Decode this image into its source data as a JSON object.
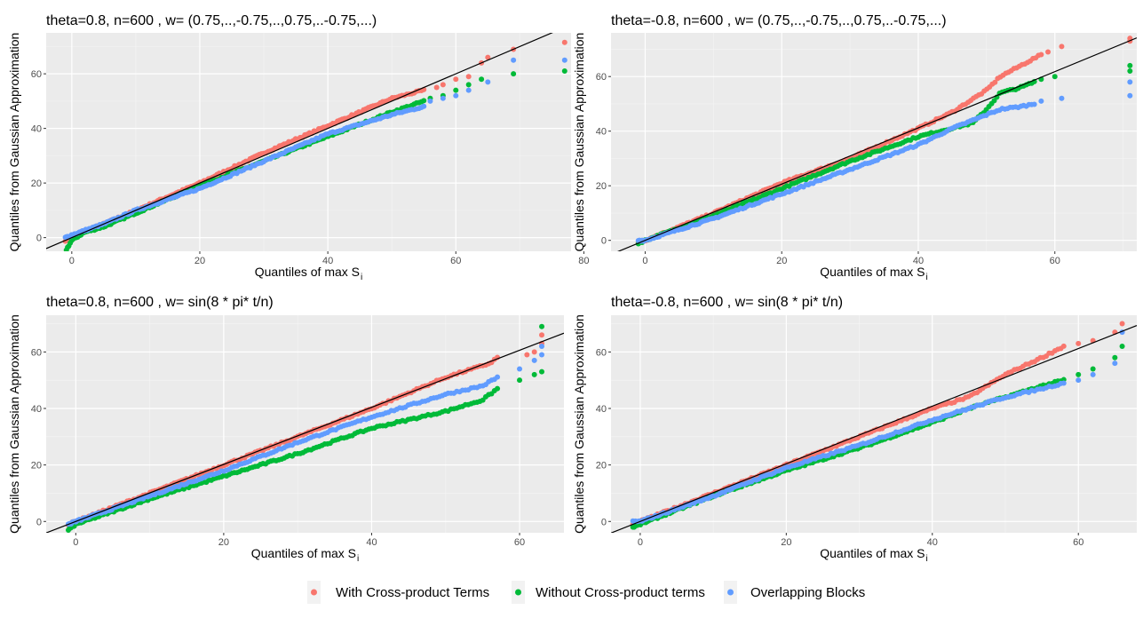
{
  "chart_data": [
    {
      "type": "scatter",
      "title": "theta=0.8, n=600 , w= (0.75,..,-0.75,..,0.75,..-0.75,...)",
      "xlabel_main": "Quantiles of max S",
      "xlabel_sub": "i",
      "ylabel": "Quantiles from Gaussian Approximation",
      "xlim": [
        -4,
        78
      ],
      "ylim": [
        -5,
        75
      ],
      "xticks": [
        0,
        20,
        40,
        60,
        80
      ],
      "yticks": [
        0,
        20,
        40,
        60
      ],
      "reference_line": {
        "intercept": 0,
        "slope": 1
      },
      "series": [
        {
          "key": "s1",
          "color": "#F8766D",
          "curve": [
            [
              -1,
              -1
            ],
            [
              0,
              0.5
            ],
            [
              5,
              5
            ],
            [
              10,
              10
            ],
            [
              20,
              20
            ],
            [
              30,
              31
            ],
            [
              40,
              41
            ],
            [
              50,
              51
            ],
            [
              55,
              54
            ]
          ],
          "tail": [
            [
              57,
              55
            ],
            [
              58,
              56
            ],
            [
              60,
              58
            ],
            [
              62,
              59
            ],
            [
              64,
              64
            ],
            [
              65,
              66
            ],
            [
              69,
              69
            ],
            [
              77,
              71.5
            ]
          ]
        },
        {
          "key": "s2",
          "color": "#00BA38",
          "curve": [
            [
              -1,
              -7
            ],
            [
              -1,
              -5
            ],
            [
              -0.5,
              -3
            ],
            [
              0,
              -1
            ],
            [
              2,
              2
            ],
            [
              5,
              4
            ],
            [
              10,
              9
            ],
            [
              20,
              19
            ],
            [
              30,
              28
            ],
            [
              40,
              37
            ],
            [
              50,
              46
            ],
            [
              55,
              50
            ]
          ],
          "tail": [
            [
              56,
              51
            ],
            [
              58,
              52
            ],
            [
              60,
              54
            ],
            [
              62,
              56
            ],
            [
              64,
              58
            ],
            [
              69,
              60
            ],
            [
              77,
              61
            ]
          ]
        },
        {
          "key": "s3",
          "color": "#619CFF",
          "curve": [
            [
              -1,
              0
            ],
            [
              0,
              1
            ],
            [
              5,
              5
            ],
            [
              10,
              10
            ],
            [
              20,
              18
            ],
            [
              30,
              28
            ],
            [
              40,
              38
            ],
            [
              50,
              45
            ],
            [
              55,
              48
            ]
          ],
          "tail": [
            [
              56,
              50
            ],
            [
              58,
              51
            ],
            [
              60,
              52
            ],
            [
              62,
              54
            ],
            [
              65,
              57
            ],
            [
              69,
              65
            ],
            [
              77,
              65
            ]
          ]
        }
      ]
    },
    {
      "type": "scatter",
      "title": "theta=-0.8, n=600 , w= (0.75,..,-0.75,..,0.75,..-0.75,...)",
      "xlabel_main": "Quantiles of max S",
      "xlabel_sub": "i",
      "ylabel": "Quantiles from Gaussian Approximation",
      "xlim": [
        -5,
        72
      ],
      "ylim": [
        -4,
        76
      ],
      "xticks": [
        0,
        20,
        40,
        60
      ],
      "yticks": [
        0,
        20,
        40,
        60
      ],
      "reference_line": {
        "intercept": 0,
        "slope": 1.03
      },
      "series": [
        {
          "key": "s1",
          "color": "#F8766D",
          "curve": [
            [
              -1,
              -1
            ],
            [
              0,
              0
            ],
            [
              10,
              10
            ],
            [
              20,
              21
            ],
            [
              30,
              30
            ],
            [
              40,
              41
            ],
            [
              45,
              47
            ],
            [
              50,
              55
            ],
            [
              52,
              60
            ],
            [
              55,
              64
            ],
            [
              58,
              68
            ]
          ],
          "tail": [
            [
              59,
              69
            ],
            [
              61,
              71
            ],
            [
              71,
              73
            ],
            [
              71,
              74
            ]
          ]
        },
        {
          "key": "s2",
          "color": "#00BA38",
          "curve": [
            [
              -1,
              -1
            ],
            [
              0,
              0
            ],
            [
              10,
              9
            ],
            [
              20,
              19
            ],
            [
              30,
              29
            ],
            [
              40,
              38
            ],
            [
              48,
              43
            ],
            [
              50,
              48
            ],
            [
              52,
              54
            ],
            [
              55,
              56
            ],
            [
              57,
              58
            ]
          ],
          "tail": [
            [
              58,
              59
            ],
            [
              60,
              60
            ],
            [
              71,
              62
            ],
            [
              71,
              64
            ]
          ]
        },
        {
          "key": "s3",
          "color": "#619CFF",
          "curve": [
            [
              -1,
              0
            ],
            [
              0,
              0
            ],
            [
              10,
              8
            ],
            [
              20,
              17
            ],
            [
              30,
              26
            ],
            [
              40,
              35
            ],
            [
              45,
              41
            ],
            [
              50,
              46
            ],
            [
              52,
              48
            ],
            [
              55,
              49
            ],
            [
              57,
              50
            ]
          ],
          "tail": [
            [
              58,
              51
            ],
            [
              61,
              52
            ],
            [
              71,
              53
            ],
            [
              71,
              58
            ]
          ]
        }
      ]
    },
    {
      "type": "scatter",
      "title": "theta=0.8, n=600 , w= sin(8 * pi* t/n)",
      "xlabel_main": "Quantiles of max S",
      "xlabel_sub": "i",
      "ylabel": "Quantiles from Gaussian Approximation",
      "xlim": [
        -4,
        66
      ],
      "ylim": [
        -4,
        73
      ],
      "xticks": [
        0,
        20,
        40,
        60
      ],
      "yticks": [
        0,
        20,
        40,
        60
      ],
      "reference_line": {
        "intercept": 0,
        "slope": 1.01
      },
      "series": [
        {
          "key": "s1",
          "color": "#F8766D",
          "curve": [
            [
              -1,
              -1
            ],
            [
              0,
              0
            ],
            [
              10,
              10
            ],
            [
              20,
              20
            ],
            [
              30,
              30
            ],
            [
              40,
              40
            ],
            [
              50,
              51
            ],
            [
              56,
              56
            ],
            [
              57,
              58
            ]
          ],
          "tail": [
            [
              61,
              59
            ],
            [
              62,
              60
            ],
            [
              63,
              63
            ],
            [
              63,
              66
            ]
          ]
        },
        {
          "key": "s2",
          "color": "#00BA38",
          "curve": [
            [
              -1,
              -3
            ],
            [
              0,
              -1
            ],
            [
              10,
              8
            ],
            [
              20,
              16
            ],
            [
              30,
              24
            ],
            [
              40,
              33
            ],
            [
              50,
              39
            ],
            [
              55,
              43
            ],
            [
              57,
              47
            ]
          ],
          "tail": [
            [
              60,
              50
            ],
            [
              62,
              52
            ],
            [
              63,
              53
            ],
            [
              63,
              69
            ]
          ]
        },
        {
          "key": "s3",
          "color": "#619CFF",
          "curve": [
            [
              -1,
              -1
            ],
            [
              0,
              0
            ],
            [
              10,
              9
            ],
            [
              20,
              18
            ],
            [
              30,
              28
            ],
            [
              40,
              37
            ],
            [
              50,
              45
            ],
            [
              55,
              48
            ],
            [
              57,
              51
            ]
          ],
          "tail": [
            [
              60,
              54
            ],
            [
              62,
              57
            ],
            [
              63,
              59
            ],
            [
              63,
              62
            ]
          ]
        }
      ]
    },
    {
      "type": "scatter",
      "title": "theta=-0.8, n=600 , w= sin(8 * pi* t/n)",
      "xlabel_main": "Quantiles of max S",
      "xlabel_sub": "i",
      "ylabel": "Quantiles from Gaussian Approximation",
      "xlim": [
        -4,
        68
      ],
      "ylim": [
        -4,
        73
      ],
      "xticks": [
        0,
        20,
        40,
        60
      ],
      "yticks": [
        0,
        20,
        40,
        60
      ],
      "reference_line": {
        "intercept": 0,
        "slope": 1.02
      },
      "series": [
        {
          "key": "s1",
          "color": "#F8766D",
          "curve": [
            [
              -1,
              -1
            ],
            [
              0,
              0
            ],
            [
              10,
              10
            ],
            [
              20,
              20
            ],
            [
              30,
              30
            ],
            [
              40,
              40
            ],
            [
              45,
              44
            ],
            [
              50,
              52
            ],
            [
              55,
              58
            ],
            [
              58,
              62
            ]
          ],
          "tail": [
            [
              60,
              63
            ],
            [
              62,
              64
            ],
            [
              65,
              67
            ],
            [
              66,
              70
            ]
          ]
        },
        {
          "key": "s2",
          "color": "#00BA38",
          "curve": [
            [
              -1,
              -2
            ],
            [
              0,
              -1
            ],
            [
              10,
              9
            ],
            [
              20,
              18
            ],
            [
              30,
              26
            ],
            [
              40,
              35
            ],
            [
              45,
              40
            ],
            [
              50,
              44
            ],
            [
              55,
              48
            ],
            [
              58,
              50
            ]
          ],
          "tail": [
            [
              60,
              52
            ],
            [
              62,
              54
            ],
            [
              65,
              58
            ],
            [
              66,
              62
            ]
          ]
        },
        {
          "key": "s3",
          "color": "#619CFF",
          "curve": [
            [
              -1,
              0
            ],
            [
              0,
              0
            ],
            [
              10,
              9
            ],
            [
              20,
              19
            ],
            [
              30,
              27
            ],
            [
              40,
              36
            ],
            [
              45,
              40
            ],
            [
              50,
              44
            ],
            [
              55,
              47
            ],
            [
              58,
              49
            ]
          ],
          "tail": [
            [
              60,
              50
            ],
            [
              62,
              52
            ],
            [
              65,
              56
            ],
            [
              66,
              67
            ]
          ]
        }
      ]
    }
  ],
  "legend": [
    {
      "key": "s1",
      "label": "With Cross-product Terms",
      "color": "#F8766D"
    },
    {
      "key": "s2",
      "label": "Without Cross-product terms",
      "color": "#00BA38"
    },
    {
      "key": "s3",
      "label": "Overlapping Blocks",
      "color": "#619CFF"
    }
  ]
}
